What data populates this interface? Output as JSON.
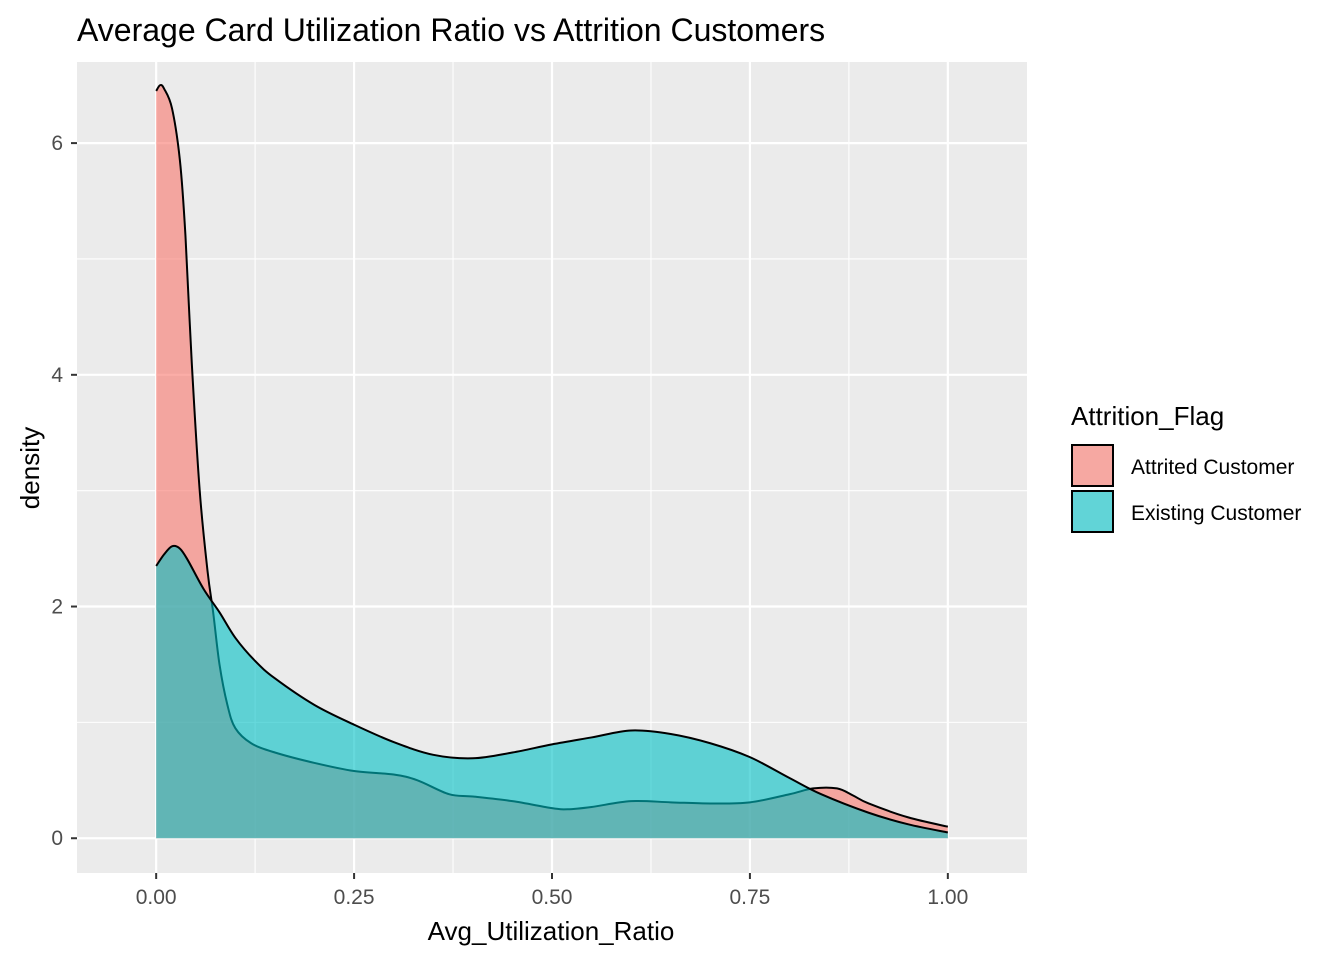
{
  "chart_data": {
    "type": "area",
    "title": "Average Card Utilization Ratio vs Attrition Customers",
    "xlabel": "Avg_Utilization_Ratio",
    "ylabel": "density",
    "xlim": [
      -0.1,
      1.1
    ],
    "ylim": [
      -0.3,
      6.7
    ],
    "x_ticks": [
      0.0,
      0.25,
      0.5,
      0.75,
      1.0
    ],
    "x_tick_labels": [
      "0.00",
      "0.25",
      "0.50",
      "0.75",
      "1.00"
    ],
    "y_ticks": [
      0,
      2,
      4,
      6
    ],
    "y_tick_labels": [
      "0",
      "2",
      "4",
      "6"
    ],
    "grid": true,
    "legend": {
      "title": "Attrition_Flag",
      "position": "right"
    },
    "series": [
      {
        "name": "Attrited Customer",
        "color": "#F8766D",
        "points": [
          [
            0.0,
            6.45
          ],
          [
            0.005,
            6.5
          ],
          [
            0.01,
            6.47
          ],
          [
            0.02,
            6.3
          ],
          [
            0.03,
            5.85
          ],
          [
            0.037,
            5.2
          ],
          [
            0.045,
            4.1
          ],
          [
            0.055,
            3.0
          ],
          [
            0.065,
            2.3
          ],
          [
            0.072,
            1.95
          ],
          [
            0.08,
            1.5
          ],
          [
            0.09,
            1.15
          ],
          [
            0.1,
            0.95
          ],
          [
            0.12,
            0.82
          ],
          [
            0.15,
            0.74
          ],
          [
            0.2,
            0.65
          ],
          [
            0.25,
            0.58
          ],
          [
            0.3,
            0.55
          ],
          [
            0.33,
            0.5
          ],
          [
            0.37,
            0.38
          ],
          [
            0.4,
            0.36
          ],
          [
            0.45,
            0.32
          ],
          [
            0.5,
            0.26
          ],
          [
            0.52,
            0.25
          ],
          [
            0.55,
            0.27
          ],
          [
            0.6,
            0.32
          ],
          [
            0.65,
            0.31
          ],
          [
            0.7,
            0.3
          ],
          [
            0.75,
            0.31
          ],
          [
            0.8,
            0.38
          ],
          [
            0.83,
            0.43
          ],
          [
            0.86,
            0.43
          ],
          [
            0.88,
            0.37
          ],
          [
            0.9,
            0.3
          ],
          [
            0.95,
            0.18
          ],
          [
            1.0,
            0.1
          ]
        ]
      },
      {
        "name": "Existing Customer",
        "color": "#00BFC4",
        "points": [
          [
            0.0,
            2.35
          ],
          [
            0.01,
            2.45
          ],
          [
            0.02,
            2.52
          ],
          [
            0.03,
            2.5
          ],
          [
            0.04,
            2.4
          ],
          [
            0.06,
            2.15
          ],
          [
            0.08,
            1.95
          ],
          [
            0.1,
            1.73
          ],
          [
            0.125,
            1.53
          ],
          [
            0.15,
            1.38
          ],
          [
            0.2,
            1.15
          ],
          [
            0.25,
            0.98
          ],
          [
            0.3,
            0.83
          ],
          [
            0.35,
            0.72
          ],
          [
            0.4,
            0.69
          ],
          [
            0.45,
            0.74
          ],
          [
            0.5,
            0.81
          ],
          [
            0.55,
            0.87
          ],
          [
            0.6,
            0.93
          ],
          [
            0.65,
            0.9
          ],
          [
            0.7,
            0.82
          ],
          [
            0.75,
            0.7
          ],
          [
            0.8,
            0.52
          ],
          [
            0.84,
            0.38
          ],
          [
            0.9,
            0.22
          ],
          [
            0.95,
            0.12
          ],
          [
            1.0,
            0.05
          ]
        ]
      }
    ]
  }
}
